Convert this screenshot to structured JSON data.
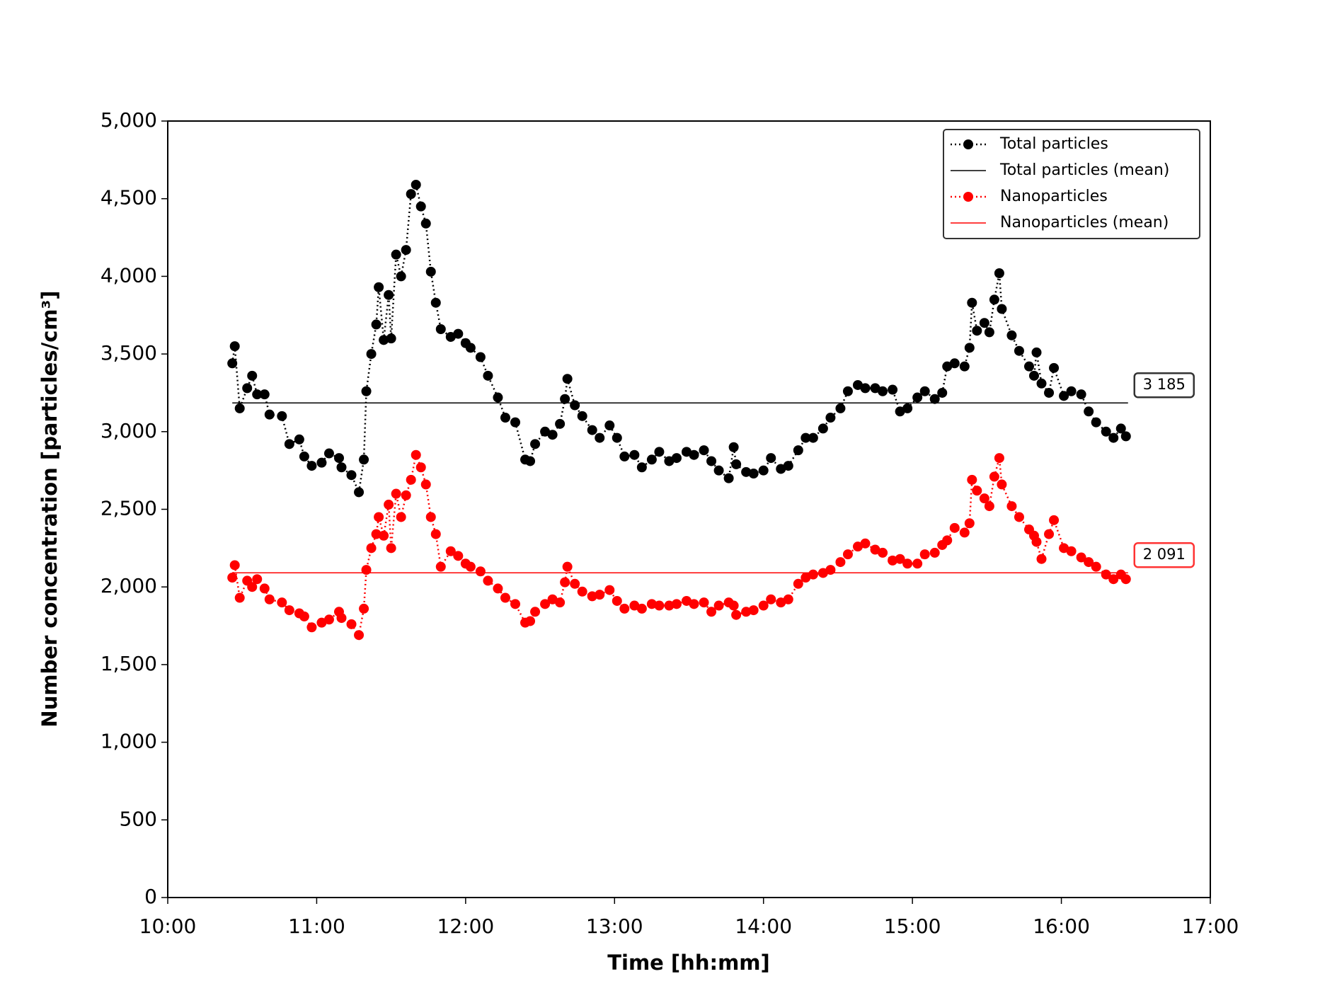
{
  "chart_data": {
    "type": "line",
    "y_label": "Number concentration [particles/cm³]",
    "x_label": "Time [hh:mm]",
    "x": [
      "10:26",
      "10:27",
      "10:29",
      "10:32",
      "10:34",
      "10:36",
      "10:39",
      "10:41",
      "10:46",
      "10:49",
      "10:53",
      "10:55",
      "10:58",
      "11:02",
      "11:05",
      "11:09",
      "11:10",
      "11:14",
      "11:17",
      "11:19",
      "11:20",
      "11:22",
      "11:24",
      "11:25",
      "11:27",
      "11:29",
      "11:30",
      "11:32",
      "11:34",
      "11:36",
      "11:38",
      "11:40",
      "11:42",
      "11:44",
      "11:46",
      "11:48",
      "11:50",
      "11:54",
      "11:57",
      "12:00",
      "12:02",
      "12:06",
      "12:09",
      "12:13",
      "12:16",
      "12:20",
      "12:24",
      "12:26",
      "12:28",
      "12:32",
      "12:35",
      "12:38",
      "12:40",
      "12:41",
      "12:44",
      "12:47",
      "12:51",
      "12:54",
      "12:58",
      "13:01",
      "13:04",
      "13:08",
      "13:11",
      "13:15",
      "13:18",
      "13:22",
      "13:25",
      "13:29",
      "13:32",
      "13:36",
      "13:39",
      "13:42",
      "13:46",
      "13:48",
      "13:49",
      "13:53",
      "13:56",
      "14:00",
      "14:03",
      "14:07",
      "14:10",
      "14:14",
      "14:17",
      "14:20",
      "14:24",
      "14:27",
      "14:31",
      "14:34",
      "14:38",
      "14:41",
      "14:45",
      "14:48",
      "14:52",
      "14:55",
      "14:58",
      "15:02",
      "15:05",
      "15:09",
      "15:12",
      "15:14",
      "15:17",
      "15:21",
      "15:23",
      "15:24",
      "15:26",
      "15:29",
      "15:31",
      "15:33",
      "15:35",
      "15:36",
      "15:40",
      "15:43",
      "15:47",
      "15:49",
      "15:50",
      "15:52",
      "15:55",
      "15:57",
      "16:01",
      "16:04",
      "16:08",
      "16:11",
      "16:14",
      "16:18",
      "16:21",
      "16:24",
      "16:26"
    ],
    "series": [
      {
        "name": "Total particles",
        "color": "#000000",
        "values": [
          3440,
          3550,
          3150,
          3280,
          3360,
          3240,
          3240,
          3110,
          3100,
          2920,
          2950,
          2840,
          2780,
          2800,
          2860,
          2830,
          2770,
          2720,
          2610,
          2820,
          3260,
          3500,
          3690,
          3930,
          3590,
          3880,
          3600,
          4140,
          4000,
          4170,
          4530,
          4590,
          4450,
          4340,
          4030,
          3830,
          3660,
          3610,
          3630,
          3570,
          3540,
          3480,
          3360,
          3220,
          3090,
          3060,
          2820,
          2810,
          2920,
          3000,
          2980,
          3050,
          3210,
          3340,
          3170,
          3100,
          3010,
          2960,
          3040,
          2960,
          2840,
          2850,
          2770,
          2820,
          2870,
          2810,
          2830,
          2870,
          2850,
          2880,
          2810,
          2750,
          2700,
          2900,
          2790,
          2740,
          2730,
          2750,
          2830,
          2760,
          2780,
          2880,
          2960,
          2960,
          3020,
          3090,
          3150,
          3260,
          3300,
          3280,
          3280,
          3260,
          3270,
          3130,
          3150,
          3220,
          3260,
          3210,
          3250,
          3420,
          3440,
          3420,
          3540,
          3830,
          3650,
          3700,
          3640,
          3850,
          4020,
          3790,
          3620,
          3520,
          3420,
          3360,
          3510,
          3310,
          3250,
          3410,
          3230,
          3260,
          3240,
          3130,
          3060,
          3000,
          2960,
          3020,
          2970
        ]
      },
      {
        "name": "Nanoparticles",
        "color": "#ff0000",
        "values": [
          2060,
          2140,
          1930,
          2040,
          2000,
          2050,
          1990,
          1920,
          1900,
          1850,
          1830,
          1810,
          1740,
          1770,
          1790,
          1840,
          1800,
          1760,
          1690,
          1860,
          2110,
          2250,
          2340,
          2450,
          2330,
          2530,
          2250,
          2600,
          2450,
          2590,
          2690,
          2850,
          2770,
          2660,
          2450,
          2340,
          2130,
          2230,
          2200,
          2150,
          2130,
          2100,
          2040,
          1990,
          1930,
          1890,
          1770,
          1780,
          1840,
          1890,
          1920,
          1900,
          2030,
          2130,
          2020,
          1970,
          1940,
          1950,
          1980,
          1910,
          1860,
          1880,
          1860,
          1890,
          1880,
          1880,
          1890,
          1910,
          1890,
          1900,
          1840,
          1880,
          1900,
          1880,
          1820,
          1840,
          1850,
          1880,
          1920,
          1900,
          1920,
          2020,
          2060,
          2080,
          2090,
          2110,
          2160,
          2210,
          2260,
          2280,
          2240,
          2220,
          2170,
          2180,
          2150,
          2150,
          2210,
          2220,
          2270,
          2300,
          2380,
          2350,
          2410,
          2690,
          2620,
          2570,
          2520,
          2710,
          2830,
          2660,
          2520,
          2450,
          2370,
          2330,
          2290,
          2180,
          2340,
          2430,
          2250,
          2230,
          2190,
          2160,
          2130,
          2080,
          2050,
          2080,
          2050
        ]
      }
    ],
    "means": [
      {
        "name": "Total particles (mean)",
        "color": "#000000",
        "value": 3185,
        "value_label": "3 185"
      },
      {
        "name": "Nanoparticles (mean)",
        "color": "#ff0000",
        "value": 2091,
        "value_label": "2 091"
      }
    ],
    "xlim": [
      "10:00",
      "17:00"
    ],
    "xticks": [
      "10:00",
      "11:00",
      "12:00",
      "13:00",
      "14:00",
      "15:00",
      "16:00",
      "17:00"
    ],
    "ylim": [
      0,
      5000
    ],
    "yticks": [
      0,
      500,
      {
        "value": 1000,
        "label": "1,000"
      },
      {
        "value": 1500,
        "label": "1,500"
      },
      {
        "value": 2000,
        "label": "2,000"
      },
      {
        "value": 2500,
        "label": "2,500"
      },
      {
        "value": 3000,
        "label": "3,000"
      },
      {
        "value": 3500,
        "label": "3,500"
      },
      {
        "value": 4000,
        "label": "4,000"
      },
      {
        "value": 4500,
        "label": "4,500"
      },
      {
        "value": 5000,
        "label": "5,000"
      }
    ],
    "legend": "upper right"
  }
}
